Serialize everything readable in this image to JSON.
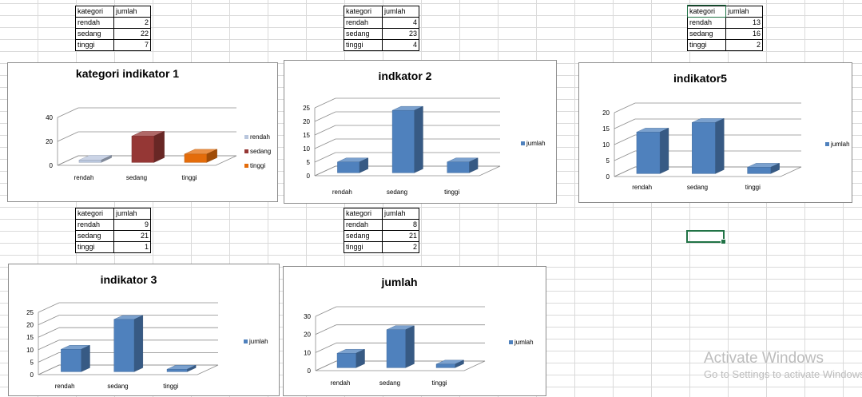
{
  "tables": [
    {
      "header": [
        "kategori",
        "jumlah"
      ],
      "rows": [
        [
          "rendah",
          "2"
        ],
        [
          "sedang",
          "22"
        ],
        [
          "tinggi",
          "7"
        ]
      ]
    },
    {
      "header": [
        "kategori",
        "jumlah"
      ],
      "rows": [
        [
          "rendah",
          "4"
        ],
        [
          "sedang",
          "23"
        ],
        [
          "tinggi",
          "4"
        ]
      ]
    },
    {
      "header": [
        "kategori",
        "jumlah"
      ],
      "rows": [
        [
          "rendah",
          "13"
        ],
        [
          "sedang",
          "16"
        ],
        [
          "tinggi",
          "2"
        ]
      ]
    },
    {
      "header": [
        "kategori",
        "jumlah"
      ],
      "rows": [
        [
          "rendah",
          "9"
        ],
        [
          "sedang",
          "21"
        ],
        [
          "tinggi",
          "1"
        ]
      ]
    },
    {
      "header": [
        "kategori",
        "jumlah"
      ],
      "rows": [
        [
          "rendah",
          "8"
        ],
        [
          "sedang",
          "21"
        ],
        [
          "tinggi",
          "2"
        ]
      ]
    }
  ],
  "chart_data": [
    {
      "type": "bar",
      "title": "kategori indikator 1",
      "categories": [
        "rendah",
        "sedang",
        "tinggi"
      ],
      "values": [
        2,
        22,
        7
      ],
      "ylim": [
        0,
        40
      ],
      "yticks": [
        0,
        20,
        40
      ],
      "colors": [
        "#b9c6dd",
        "#953735",
        "#e46c0a"
      ],
      "legend": [
        "rendah",
        "sedang",
        "tinggi"
      ],
      "legend_position": "right",
      "vary_colors": true,
      "grid": true
    },
    {
      "type": "bar",
      "title": "indkator 2",
      "categories": [
        "rendah",
        "sedang",
        "tinggi"
      ],
      "values": [
        4,
        23,
        4
      ],
      "ylim": [
        0,
        25
      ],
      "yticks": [
        0,
        5,
        10,
        15,
        20,
        25
      ],
      "colors": [
        "#4f81bd"
      ],
      "legend": [
        "jumlah"
      ],
      "legend_position": "right",
      "grid": true
    },
    {
      "type": "bar",
      "title": "indikator5",
      "categories": [
        "rendah",
        "sedang",
        "tinggi"
      ],
      "values": [
        13,
        16,
        2
      ],
      "ylim": [
        0,
        20
      ],
      "yticks": [
        0,
        5,
        10,
        15,
        20
      ],
      "colors": [
        "#4f81bd"
      ],
      "legend": [
        "jumlah"
      ],
      "legend_position": "right",
      "grid": true
    },
    {
      "type": "bar",
      "title": "indikator 3",
      "categories": [
        "rendah",
        "sedang",
        "tinggi"
      ],
      "values": [
        9,
        21,
        1
      ],
      "ylim": [
        0,
        25
      ],
      "yticks": [
        0,
        5,
        10,
        15,
        20,
        25
      ],
      "colors": [
        "#4f81bd"
      ],
      "legend": [
        "jumlah"
      ],
      "legend_position": "right",
      "grid": true
    },
    {
      "type": "bar",
      "title": "jumlah",
      "categories": [
        "rendah",
        "sedang",
        "tinggi"
      ],
      "values": [
        8,
        21,
        2
      ],
      "ylim": [
        0,
        30
      ],
      "yticks": [
        0,
        10,
        20,
        30
      ],
      "colors": [
        "#4f81bd"
      ],
      "legend": [
        "jumlah"
      ],
      "legend_position": "right",
      "grid": true
    }
  ],
  "watermark": {
    "line1": "Activate Windows",
    "line2": "Go to Settings to activate Windows."
  }
}
